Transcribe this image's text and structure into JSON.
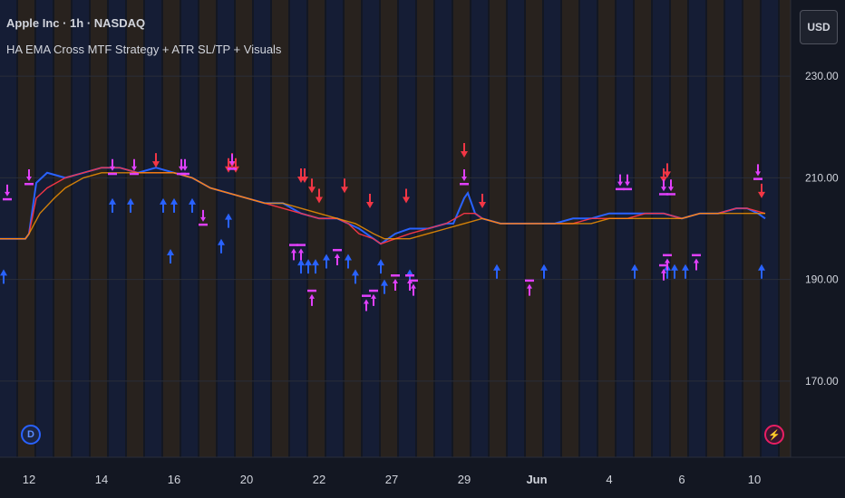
{
  "header": {
    "title": "Apple Inc · 1h · NASDAQ",
    "subtitle": "HA EMA Cross MTF Strategy + ATR SL/TP + Visuals",
    "currency_button": "USD"
  },
  "badges": {
    "left_icon": "D",
    "right_icon": "⚡"
  },
  "colors": {
    "background": "#131722",
    "axis_text": "#d1d4dc",
    "grid": "#2a2e39",
    "ema_fast": "#f23645",
    "ema_slow": "#2962ff",
    "ema_mid": "#ff9800",
    "buy_arrow": "#2962ff",
    "sell_arrow": "#f23645",
    "entry_marker": "#e040fb",
    "band_blue": "rgba(41,98,255,0.09)",
    "band_orange": "rgba(255,152,0,0.09)"
  },
  "chart_data": {
    "type": "line",
    "ylim": [
      155,
      245
    ],
    "y_ticks": [
      {
        "value": 230,
        "label": "230.00"
      },
      {
        "value": 210,
        "label": "210.00"
      },
      {
        "value": 190,
        "label": "190.00"
      },
      {
        "value": 170,
        "label": "170.00"
      }
    ],
    "x_ticks": [
      {
        "x": 0.5,
        "label": "12"
      },
      {
        "x": 2.5,
        "label": "14"
      },
      {
        "x": 4.5,
        "label": "16"
      },
      {
        "x": 6.5,
        "label": "20"
      },
      {
        "x": 8.5,
        "label": "22"
      },
      {
        "x": 10.5,
        "label": "27"
      },
      {
        "x": 12.5,
        "label": "29"
      },
      {
        "x": 14.5,
        "label": "Jun"
      },
      {
        "x": 16.5,
        "label": "4"
      },
      {
        "x": 18.5,
        "label": "6"
      },
      {
        "x": 20.5,
        "label": "10"
      }
    ],
    "xlim": [
      -0.3,
      21.5
    ],
    "series": [
      {
        "x": [
          -0.3,
          0.1,
          0.4,
          0.5,
          0.7,
          1.0,
          1.5,
          2.0,
          2.5,
          3.0,
          3.5,
          4.0,
          4.5,
          5.0,
          5.5,
          6.0,
          6.5,
          7.0,
          7.5,
          8.0,
          8.5,
          9.0,
          9.3,
          9.6,
          10.0,
          10.2,
          10.6,
          11.0,
          11.5,
          12.0,
          12.2,
          12.5,
          12.6,
          12.8,
          13.0,
          13.5,
          14.0,
          14.5,
          15.0,
          15.5,
          16.0,
          16.5,
          17.0,
          17.5,
          18.0,
          18.5,
          19.0,
          19.5,
          20.0,
          20.3,
          20.6,
          20.8
        ],
        "values": [
          198,
          198,
          198,
          199,
          209,
          211,
          210,
          211,
          212,
          212,
          211,
          212,
          211,
          210,
          208,
          207,
          206,
          205,
          205,
          203,
          202,
          202,
          201,
          200,
          198,
          197,
          199,
          200,
          200,
          201,
          201,
          206,
          207,
          203,
          202,
          201,
          201,
          201,
          201,
          202,
          202,
          203,
          203,
          203,
          203,
          202,
          203,
          203,
          204,
          204,
          203,
          202
        ]
      },
      {
        "x": [
          -0.3,
          0.4,
          0.5,
          0.7,
          1.0,
          1.5,
          2.0,
          2.5,
          3.0,
          3.5,
          4.0,
          4.5,
          5.0,
          5.5,
          6.0,
          6.5,
          7.0,
          7.5,
          8.0,
          8.5,
          9.0,
          9.3,
          9.6,
          10.0,
          10.2,
          10.6,
          11.0,
          11.5,
          12.0,
          12.5,
          12.8,
          13.0,
          13.5,
          14.0,
          14.5,
          15.0,
          15.5,
          16.0,
          16.5,
          17.0,
          17.5,
          18.0,
          18.5,
          19.0,
          19.5,
          20.0,
          20.3,
          20.8
        ],
        "values": [
          198,
          198,
          199,
          206,
          208,
          210,
          211,
          212,
          212,
          211,
          211,
          211,
          210,
          208,
          207,
          206,
          205,
          204,
          203,
          202,
          202,
          201,
          199,
          198,
          197,
          198,
          199,
          200,
          201,
          203,
          203,
          202,
          201,
          201,
          201,
          201,
          201,
          202,
          202,
          202,
          203,
          203,
          202,
          203,
          203,
          204,
          204,
          203
        ]
      },
      {
        "x": [
          -0.3,
          0.4,
          0.5,
          0.8,
          1.2,
          1.5,
          2.0,
          2.5,
          3.0,
          3.5,
          4.0,
          4.5,
          5.0,
          5.5,
          6.0,
          6.5,
          7.0,
          7.5,
          8.0,
          8.5,
          9.0,
          9.5,
          10.0,
          10.3,
          10.6,
          11.0,
          11.5,
          12.0,
          12.5,
          13.0,
          13.5,
          14.0,
          14.5,
          15.0,
          15.5,
          16.0,
          16.5,
          17.0,
          17.5,
          18.0,
          18.5,
          19.0,
          19.5,
          20.0,
          20.3,
          20.8
        ],
        "values": [
          198,
          198,
          199,
          203,
          206,
          208,
          210,
          211,
          211,
          211,
          211,
          211,
          210,
          208,
          207,
          206,
          205,
          205,
          204,
          203,
          202,
          201,
          199,
          198,
          198,
          198,
          199,
          200,
          201,
          202,
          201,
          201,
          201,
          201,
          201,
          201,
          202,
          202,
          202,
          202,
          202,
          203,
          203,
          203,
          203,
          203
        ]
      }
    ],
    "buy_signals": [
      {
        "x": -0.2,
        "y": 192
      },
      {
        "x": 2.8,
        "y": 206
      },
      {
        "x": 3.3,
        "y": 206
      },
      {
        "x": 4.2,
        "y": 206
      },
      {
        "x": 4.5,
        "y": 206
      },
      {
        "x": 4.4,
        "y": 196
      },
      {
        "x": 5.0,
        "y": 206
      },
      {
        "x": 5.8,
        "y": 198
      },
      {
        "x": 6.0,
        "y": 203
      },
      {
        "x": 8.0,
        "y": 194
      },
      {
        "x": 8.2,
        "y": 194
      },
      {
        "x": 8.4,
        "y": 194
      },
      {
        "x": 8.7,
        "y": 195
      },
      {
        "x": 9.3,
        "y": 195
      },
      {
        "x": 9.5,
        "y": 192
      },
      {
        "x": 10.2,
        "y": 194
      },
      {
        "x": 10.3,
        "y": 190
      },
      {
        "x": 11.0,
        "y": 192
      },
      {
        "x": 13.4,
        "y": 193
      },
      {
        "x": 14.7,
        "y": 193
      },
      {
        "x": 17.2,
        "y": 193
      },
      {
        "x": 18.1,
        "y": 193
      },
      {
        "x": 18.3,
        "y": 193
      },
      {
        "x": 18.6,
        "y": 193
      },
      {
        "x": 20.7,
        "y": 193
      }
    ],
    "sell_signals": [
      {
        "x": 4.0,
        "y": 212
      },
      {
        "x": 6.0,
        "y": 211
      },
      {
        "x": 6.1,
        "y": 212
      },
      {
        "x": 6.2,
        "y": 211
      },
      {
        "x": 8.0,
        "y": 209
      },
      {
        "x": 8.1,
        "y": 209
      },
      {
        "x": 8.3,
        "y": 207
      },
      {
        "x": 8.5,
        "y": 205
      },
      {
        "x": 9.2,
        "y": 207
      },
      {
        "x": 9.9,
        "y": 204
      },
      {
        "x": 10.9,
        "y": 205
      },
      {
        "x": 12.5,
        "y": 214
      },
      {
        "x": 13.0,
        "y": 204
      },
      {
        "x": 18.0,
        "y": 209
      },
      {
        "x": 18.1,
        "y": 210
      },
      {
        "x": 20.7,
        "y": 206
      }
    ],
    "entry_markers": [
      {
        "x": -0.1,
        "y": 206,
        "dir": "down"
      },
      {
        "x": 0.5,
        "y": 209,
        "dir": "down"
      },
      {
        "x": 2.8,
        "y": 211,
        "dir": "down"
      },
      {
        "x": 3.4,
        "y": 211,
        "dir": "down"
      },
      {
        "x": 4.7,
        "y": 211,
        "dir": "down"
      },
      {
        "x": 4.8,
        "y": 211,
        "dir": "down"
      },
      {
        "x": 5.3,
        "y": 201,
        "dir": "down"
      },
      {
        "x": 6.1,
        "y": 212,
        "dir": "down"
      },
      {
        "x": 7.8,
        "y": 197,
        "dir": "up"
      },
      {
        "x": 8.0,
        "y": 197,
        "dir": "up"
      },
      {
        "x": 8.3,
        "y": 188,
        "dir": "up"
      },
      {
        "x": 9.0,
        "y": 196,
        "dir": "up"
      },
      {
        "x": 9.8,
        "y": 187,
        "dir": "up"
      },
      {
        "x": 10.0,
        "y": 188,
        "dir": "up"
      },
      {
        "x": 10.6,
        "y": 191,
        "dir": "up"
      },
      {
        "x": 11.0,
        "y": 191,
        "dir": "up"
      },
      {
        "x": 11.1,
        "y": 190,
        "dir": "up"
      },
      {
        "x": 12.5,
        "y": 209,
        "dir": "down"
      },
      {
        "x": 14.3,
        "y": 190,
        "dir": "up"
      },
      {
        "x": 16.8,
        "y": 208,
        "dir": "down"
      },
      {
        "x": 17.0,
        "y": 208,
        "dir": "down"
      },
      {
        "x": 18.0,
        "y": 193,
        "dir": "up"
      },
      {
        "x": 18.1,
        "y": 195,
        "dir": "up"
      },
      {
        "x": 18.0,
        "y": 207,
        "dir": "down"
      },
      {
        "x": 18.2,
        "y": 207,
        "dir": "down"
      },
      {
        "x": 18.9,
        "y": 195,
        "dir": "up"
      },
      {
        "x": 20.6,
        "y": 210,
        "dir": "down"
      }
    ],
    "grid": true,
    "legend": "none"
  }
}
